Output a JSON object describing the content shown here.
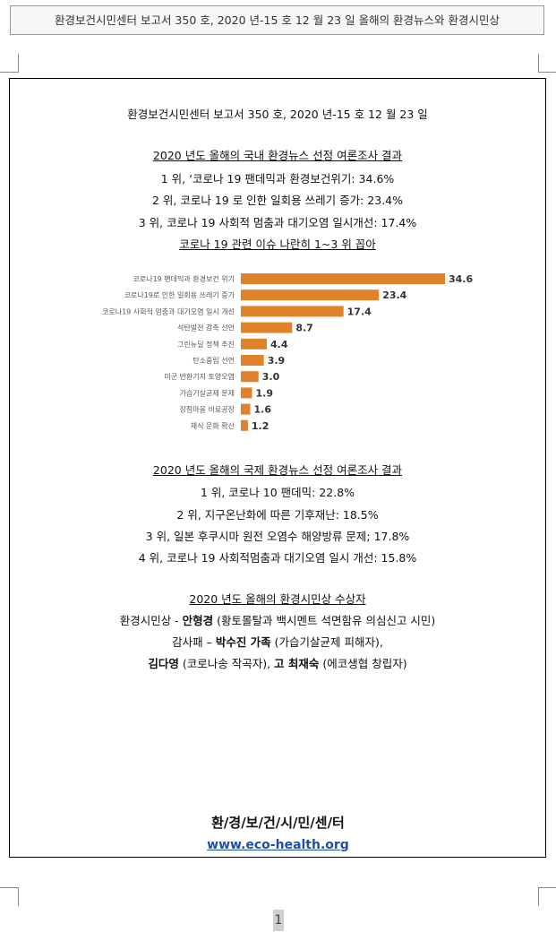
{
  "tab_title": "환경보건시민센터 보고서 350 호, 2020 년-15 호 12 월 23 일 올해의 환경뉴스와 환경시민상",
  "report_header": "환경보건시민센터 보고서 350 호, 2020 년-15 호 12 월 23 일",
  "domestic": {
    "title": "2020 년도 올해의 국내 환경뉴스 선정 여론조사 결과",
    "items": [
      "1 위, ‘코로나 19 팬데믹과 환경보건위기: 34.6%",
      "2 위, 코로나 19 로 인한 일회용 쓰레기 증가: 23.4%",
      "3 위, 코로나 19 사회적 멈춤과 대기오염 일시개선: 17.4%"
    ],
    "note": "코로나 19 관련 이슈 나란히 1~3 위 꼽아"
  },
  "chart_data": {
    "type": "bar",
    "orientation": "horizontal",
    "categories": [
      "코로나19 팬데믹과 환경보건 위기",
      "코로나19로 인한 일회용 쓰레기 증가",
      "코로나19 사회적 멈춤과 대기오염 일시 개선",
      "석탄발전 감축 선언",
      "그린뉴딜 정책 추진",
      "탄소중립 선언",
      "미군 반환기지 토양오염",
      "가습기살균제 문제",
      "장점마을 비료공장",
      "채식 문화 확산"
    ],
    "values": [
      34.6,
      23.4,
      17.4,
      8.7,
      4.4,
      3.9,
      3.0,
      1.9,
      1.6,
      1.2
    ],
    "value_labels": [
      "34.6",
      "23.4",
      "17.4",
      "8.7",
      "4.4",
      "3.9",
      "3.0",
      "1.9",
      "1.6",
      "1.2"
    ],
    "bar_color": "#e0822b",
    "xlim": [
      0,
      34.6
    ],
    "grid": false
  },
  "international": {
    "title": "2020 년도 올해의 국제 환경뉴스 선정 여론조사 결과",
    "items": [
      "1 위, 코로나 10 팬데믹: 22.8%",
      "2 위, 지구온난화에 따른 기후재난: 18.5%",
      "3 위, 일본 후쿠시마 원전 오염수 해양방류 문제; 17.8%",
      "4 위, 코로나 19 사회적멈춤과 대기오염 일시 개선: 15.8%"
    ]
  },
  "award": {
    "title": "2020 년도 올해의 환경시민상 수상자",
    "line1_prefix": "환경시민상 - ",
    "line1_name": "안형경",
    "line1_suffix": " (황토몰탈과 백시멘트 석면함유 의심신고 시민)",
    "line2_prefix": "감사패 – ",
    "line2_name": "박수진 가족",
    "line2_suffix": " (가습기살균제 피해자),",
    "line3_name1": "김다영",
    "line3_mid": " (코로나송 작곡자), ",
    "line3_name2": "고 최재숙",
    "line3_suffix": " (에코생협 창립자)"
  },
  "footer": {
    "org": "환/경/보/건/시/민/센/터",
    "url": "www.eco-health.org"
  },
  "page_number": "1"
}
